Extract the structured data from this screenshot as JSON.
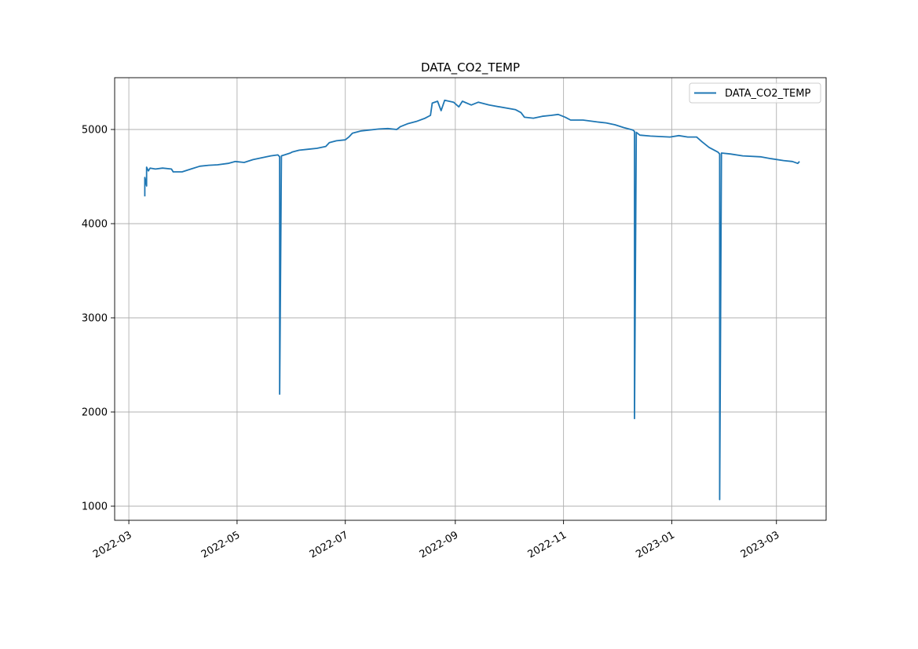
{
  "chart_data": {
    "type": "line",
    "title": "DATA_CO2_TEMP",
    "xlabel": "",
    "ylabel": "",
    "x_axis_type": "date",
    "xlim": [
      "2022-02-21",
      "2023-03-29"
    ],
    "ylim": [
      850,
      5550
    ],
    "grid": true,
    "legend_placement": "top-right",
    "x_tick_labels": [
      "2022-03",
      "2022-05",
      "2022-07",
      "2022-09",
      "2022-11",
      "2023-01",
      "2023-03"
    ],
    "x_ticks": [
      "2022-03-01",
      "2022-05-01",
      "2022-07-01",
      "2022-09-01",
      "2022-11-01",
      "2023-01-01",
      "2023-03-01"
    ],
    "y_tick_labels": [
      "1000",
      "2000",
      "3000",
      "4000",
      "5000"
    ],
    "y_ticks": [
      1000,
      2000,
      3000,
      4000,
      5000
    ],
    "series": [
      {
        "name": "DATA_CO2_TEMP",
        "color": "#1f77b4",
        "points": [
          [
            "2022-03-10",
            4290
          ],
          [
            "2022-03-10",
            4490
          ],
          [
            "2022-03-11",
            4400
          ],
          [
            "2022-03-11",
            4600
          ],
          [
            "2022-03-12",
            4560
          ],
          [
            "2022-03-13",
            4590
          ],
          [
            "2022-03-16",
            4580
          ],
          [
            "2022-03-20",
            4590
          ],
          [
            "2022-03-25",
            4580
          ],
          [
            "2022-03-26",
            4550
          ],
          [
            "2022-03-31",
            4550
          ],
          [
            "2022-04-05",
            4580
          ],
          [
            "2022-04-10",
            4610
          ],
          [
            "2022-04-15",
            4620
          ],
          [
            "2022-04-20",
            4625
          ],
          [
            "2022-04-26",
            4640
          ],
          [
            "2022-04-30",
            4660
          ],
          [
            "2022-05-05",
            4650
          ],
          [
            "2022-05-10",
            4680
          ],
          [
            "2022-05-15",
            4700
          ],
          [
            "2022-05-20",
            4720
          ],
          [
            "2022-05-24",
            4730
          ],
          [
            "2022-05-25",
            4710
          ],
          [
            "2022-05-25",
            2190
          ],
          [
            "2022-05-26",
            4720
          ],
          [
            "2022-05-31",
            4750
          ],
          [
            "2022-06-01",
            4760
          ],
          [
            "2022-06-05",
            4780
          ],
          [
            "2022-06-10",
            4790
          ],
          [
            "2022-06-15",
            4800
          ],
          [
            "2022-06-20",
            4820
          ],
          [
            "2022-06-22",
            4860
          ],
          [
            "2022-06-26",
            4880
          ],
          [
            "2022-07-01",
            4890
          ],
          [
            "2022-07-03",
            4920
          ],
          [
            "2022-07-05",
            4960
          ],
          [
            "2022-07-10",
            4985
          ],
          [
            "2022-07-20",
            5005
          ],
          [
            "2022-07-25",
            5010
          ],
          [
            "2022-07-30",
            5000
          ],
          [
            "2022-08-01",
            5030
          ],
          [
            "2022-08-05",
            5060
          ],
          [
            "2022-08-10",
            5085
          ],
          [
            "2022-08-15",
            5120
          ],
          [
            "2022-08-18",
            5150
          ],
          [
            "2022-08-19",
            5280
          ],
          [
            "2022-08-22",
            5300
          ],
          [
            "2022-08-24",
            5200
          ],
          [
            "2022-08-26",
            5310
          ],
          [
            "2022-08-31",
            5290
          ],
          [
            "2022-09-03",
            5240
          ],
          [
            "2022-09-05",
            5300
          ],
          [
            "2022-09-10",
            5260
          ],
          [
            "2022-09-14",
            5290
          ],
          [
            "2022-09-20",
            5260
          ],
          [
            "2022-10-05",
            5210
          ],
          [
            "2022-10-08",
            5180
          ],
          [
            "2022-10-10",
            5130
          ],
          [
            "2022-10-15",
            5120
          ],
          [
            "2022-10-20",
            5140
          ],
          [
            "2022-10-25",
            5150
          ],
          [
            "2022-10-29",
            5160
          ],
          [
            "2022-11-02",
            5130
          ],
          [
            "2022-11-05",
            5100
          ],
          [
            "2022-11-12",
            5100
          ],
          [
            "2022-11-20",
            5080
          ],
          [
            "2022-11-25",
            5070
          ],
          [
            "2022-11-30",
            5050
          ],
          [
            "2022-12-05",
            5020
          ],
          [
            "2022-12-10",
            4995
          ],
          [
            "2022-12-11",
            4980
          ],
          [
            "2022-12-11",
            1930
          ],
          [
            "2022-12-12",
            4970
          ],
          [
            "2022-12-14",
            4940
          ],
          [
            "2022-12-20",
            4930
          ],
          [
            "2022-12-31",
            4920
          ],
          [
            "2023-01-05",
            4935
          ],
          [
            "2023-01-10",
            4920
          ],
          [
            "2023-01-15",
            4920
          ],
          [
            "2023-01-18",
            4870
          ],
          [
            "2023-01-22",
            4810
          ],
          [
            "2023-01-27",
            4760
          ],
          [
            "2023-01-28",
            4740
          ],
          [
            "2023-01-28",
            1070
          ],
          [
            "2023-01-29",
            4750
          ],
          [
            "2023-02-03",
            4740
          ],
          [
            "2023-02-10",
            4720
          ],
          [
            "2023-02-20",
            4710
          ],
          [
            "2023-02-26",
            4690
          ],
          [
            "2023-03-05",
            4670
          ],
          [
            "2023-03-10",
            4660
          ],
          [
            "2023-03-13",
            4640
          ],
          [
            "2023-03-14",
            4660
          ]
        ]
      }
    ]
  }
}
